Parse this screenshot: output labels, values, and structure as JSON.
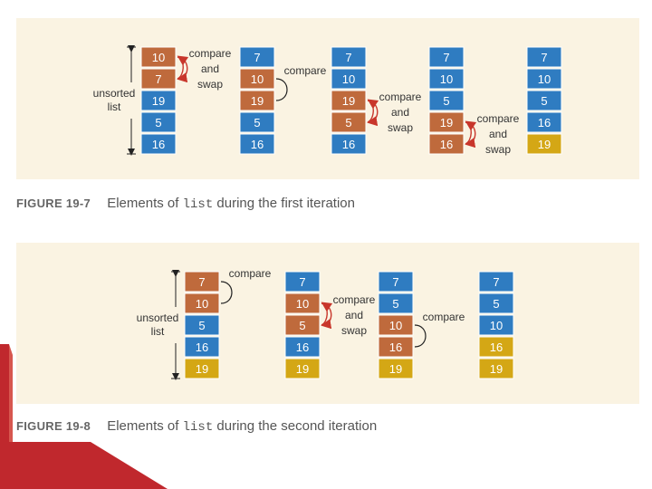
{
  "colors": {
    "blue": "#2f7cc1",
    "orange": "#bf6a3c",
    "yellow": "#d4a715",
    "panel_bg": "#faf3e2",
    "arrow": "#c8362b"
  },
  "figure1": {
    "caption_num": "FIGURE 19-7",
    "caption_pre": "Elements of",
    "caption_code": "list",
    "caption_post": "during the first iteration",
    "side_label": [
      "unsorted",
      "list"
    ],
    "columns": [
      {
        "cells": [
          {
            "v": "10",
            "c": "orange"
          },
          {
            "v": "7",
            "c": "orange"
          },
          {
            "v": "19",
            "c": "blue"
          },
          {
            "v": "5",
            "c": "blue"
          },
          {
            "v": "16",
            "c": "blue"
          }
        ],
        "annotation": {
          "lines": [
            "compare",
            "and",
            "swap"
          ],
          "rows": [
            0,
            1
          ],
          "kind": "swap"
        }
      },
      {
        "cells": [
          {
            "v": "7",
            "c": "blue"
          },
          {
            "v": "10",
            "c": "orange"
          },
          {
            "v": "19",
            "c": "orange"
          },
          {
            "v": "5",
            "c": "blue"
          },
          {
            "v": "16",
            "c": "blue"
          }
        ],
        "annotation": {
          "lines": [
            "compare"
          ],
          "rows": [
            1,
            2
          ],
          "kind": "compare"
        }
      },
      {
        "cells": [
          {
            "v": "7",
            "c": "blue"
          },
          {
            "v": "10",
            "c": "blue"
          },
          {
            "v": "19",
            "c": "orange"
          },
          {
            "v": "5",
            "c": "orange"
          },
          {
            "v": "16",
            "c": "blue"
          }
        ],
        "annotation": {
          "lines": [
            "compare",
            "and",
            "swap"
          ],
          "rows": [
            2,
            3
          ],
          "kind": "swap"
        }
      },
      {
        "cells": [
          {
            "v": "7",
            "c": "blue"
          },
          {
            "v": "10",
            "c": "blue"
          },
          {
            "v": "5",
            "c": "blue"
          },
          {
            "v": "19",
            "c": "orange"
          },
          {
            "v": "16",
            "c": "orange"
          }
        ],
        "annotation": {
          "lines": [
            "compare",
            "and",
            "swap"
          ],
          "rows": [
            3,
            4
          ],
          "kind": "swap"
        }
      },
      {
        "cells": [
          {
            "v": "7",
            "c": "blue"
          },
          {
            "v": "10",
            "c": "blue"
          },
          {
            "v": "5",
            "c": "blue"
          },
          {
            "v": "16",
            "c": "blue"
          },
          {
            "v": "19",
            "c": "yellow"
          }
        ]
      }
    ]
  },
  "figure2": {
    "caption_num": "FIGURE 19-8",
    "caption_pre": "Elements of",
    "caption_code": "list",
    "caption_post": "during the second iteration",
    "side_label": [
      "unsorted",
      "list"
    ],
    "columns": [
      {
        "cells": [
          {
            "v": "7",
            "c": "orange"
          },
          {
            "v": "10",
            "c": "orange"
          },
          {
            "v": "5",
            "c": "blue"
          },
          {
            "v": "16",
            "c": "blue"
          },
          {
            "v": "19",
            "c": "yellow"
          }
        ],
        "annotation": {
          "lines": [
            "compare"
          ],
          "rows": [
            0,
            1
          ],
          "kind": "compare"
        }
      },
      {
        "cells": [
          {
            "v": "7",
            "c": "blue"
          },
          {
            "v": "10",
            "c": "orange"
          },
          {
            "v": "5",
            "c": "orange"
          },
          {
            "v": "16",
            "c": "blue"
          },
          {
            "v": "19",
            "c": "yellow"
          }
        ],
        "annotation": {
          "lines": [
            "compare",
            "and",
            "swap"
          ],
          "rows": [
            1,
            2
          ],
          "kind": "swap"
        }
      },
      {
        "cells": [
          {
            "v": "7",
            "c": "blue"
          },
          {
            "v": "5",
            "c": "blue"
          },
          {
            "v": "10",
            "c": "orange"
          },
          {
            "v": "16",
            "c": "orange"
          },
          {
            "v": "19",
            "c": "yellow"
          }
        ],
        "annotation": {
          "lines": [
            "compare"
          ],
          "rows": [
            2,
            3
          ],
          "kind": "compare"
        }
      },
      {
        "cells": [
          {
            "v": "7",
            "c": "blue"
          },
          {
            "v": "5",
            "c": "blue"
          },
          {
            "v": "10",
            "c": "blue"
          },
          {
            "v": "16",
            "c": "yellow"
          },
          {
            "v": "19",
            "c": "yellow"
          }
        ]
      }
    ]
  }
}
